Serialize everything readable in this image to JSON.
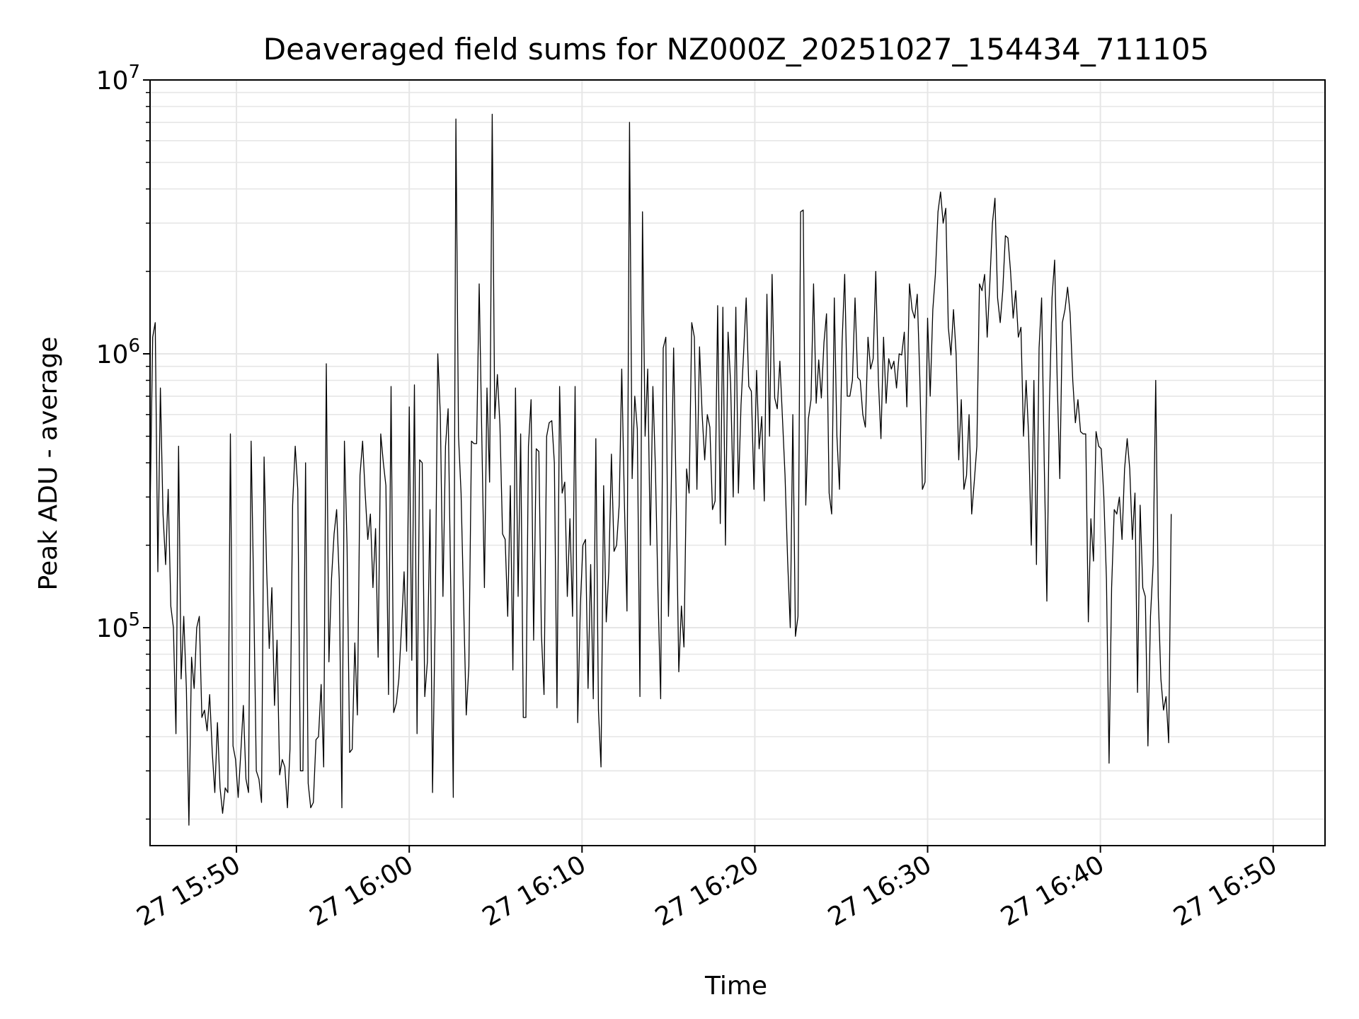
{
  "chart_data": {
    "type": "line",
    "title": "Deaveraged field sums for NZ000Z_20251027_154434_711105",
    "xlabel": "Time",
    "ylabel": "Peak ADU - average",
    "yscale": "log",
    "ylim": [
      16000,
      10000000
    ],
    "xlim_minutes": [
      -5,
      63
    ],
    "x_unit": "minutes after 27 15:50",
    "grid": true,
    "line_color": "#000000",
    "grid_color": "#e6e6e6",
    "x_ticks": [
      {
        "value": 0,
        "label": "27 15:50"
      },
      {
        "value": 10,
        "label": "27 16:00"
      },
      {
        "value": 20,
        "label": "27 16:10"
      },
      {
        "value": 30,
        "label": "27 16:20"
      },
      {
        "value": 40,
        "label": "27 16:30"
      },
      {
        "value": 50,
        "label": "27 16:40"
      },
      {
        "value": 60,
        "label": "27 16:50"
      }
    ],
    "y_ticks": [
      {
        "value": 100000,
        "base": "10",
        "exp": "5"
      },
      {
        "value": 1000000,
        "base": "10",
        "exp": "6"
      },
      {
        "value": 10000000,
        "base": "10",
        "exp": "7"
      }
    ],
    "series": [
      {
        "name": "Peak ADU - average",
        "sample_interval_s": 9,
        "t0_minutes": -5.0,
        "values": [
          260000,
          1150000,
          1300000,
          160000,
          750000,
          260000,
          170000,
          320000,
          120000,
          100000,
          41000,
          460000,
          65000,
          110000,
          60000,
          19000,
          78000,
          60000,
          100000,
          110000,
          47000,
          50000,
          42000,
          57000,
          35000,
          25000,
          45000,
          26000,
          21000,
          26000,
          25000,
          510000,
          37000,
          33000,
          24000,
          35000,
          52000,
          28000,
          25000,
          480000,
          130000,
          30000,
          28000,
          23000,
          420000,
          160000,
          84000,
          140000,
          52000,
          90000,
          29000,
          33000,
          31000,
          22000,
          36000,
          280000,
          460000,
          320000,
          30000,
          30000,
          400000,
          27000,
          22000,
          23000,
          39000,
          40000,
          62000,
          31000,
          920000,
          75000,
          150000,
          220000,
          270000,
          150000,
          22000,
          480000,
          200000,
          35000,
          36000,
          88000,
          48000,
          360000,
          480000,
          310000,
          210000,
          260000,
          140000,
          230000,
          78000,
          510000,
          400000,
          330000,
          57000,
          760000,
          49000,
          53000,
          65000,
          100000,
          160000,
          82000,
          640000,
          76000,
          770000,
          41000,
          410000,
          400000,
          56000,
          75000,
          270000,
          25000,
          110000,
          1000000,
          600000,
          130000,
          460000,
          630000,
          140000,
          24000,
          7200000,
          500000,
          310000,
          120000,
          48000,
          72000,
          480000,
          470000,
          470000,
          1800000,
          500000,
          140000,
          750000,
          340000,
          7500000,
          580000,
          840000,
          550000,
          220000,
          210000,
          110000,
          330000,
          70000,
          750000,
          130000,
          510000,
          47000,
          47000,
          460000,
          680000,
          90000,
          450000,
          440000,
          95000,
          57000,
          500000,
          560000,
          570000,
          400000,
          51000,
          760000,
          310000,
          340000,
          130000,
          250000,
          110000,
          760000,
          45000,
          120000,
          200000,
          210000,
          60000,
          170000,
          55000,
          490000,
          50000,
          31000,
          330000,
          105000,
          160000,
          430000,
          190000,
          200000,
          280000,
          880000,
          290000,
          115000,
          7000000,
          350000,
          700000,
          530000,
          56000,
          3300000,
          500000,
          880000,
          200000,
          760000,
          380000,
          130000,
          55000,
          1050000,
          1150000,
          110000,
          290000,
          1050000,
          300000,
          69000,
          120000,
          85000,
          380000,
          310000,
          1300000,
          1150000,
          320000,
          1060000,
          600000,
          410000,
          600000,
          540000,
          270000,
          290000,
          1500000,
          240000,
          1480000,
          200000,
          1200000,
          780000,
          300000,
          1480000,
          310000,
          650000,
          1000000,
          1600000,
          760000,
          730000,
          320000,
          870000,
          450000,
          590000,
          290000,
          1650000,
          500000,
          1950000,
          690000,
          630000,
          940000,
          580000,
          360000,
          175000,
          100000,
          600000,
          93000,
          110000,
          3300000,
          3350000,
          280000,
          580000,
          680000,
          1800000,
          660000,
          950000,
          690000,
          1100000,
          1400000,
          310000,
          260000,
          1600000,
          500000,
          320000,
          1100000,
          1950000,
          700000,
          700000,
          800000,
          1600000,
          820000,
          800000,
          600000,
          540000,
          1150000,
          880000,
          960000,
          2000000,
          800000,
          490000,
          1150000,
          660000,
          960000,
          880000,
          940000,
          750000,
          1000000,
          990000,
          1200000,
          640000,
          1800000,
          1450000,
          1350000,
          1650000,
          820000,
          320000,
          340000,
          1350000,
          700000,
          1450000,
          1950000,
          3300000,
          3900000,
          3000000,
          3400000,
          1250000,
          990000,
          1450000,
          1000000,
          410000,
          680000,
          320000,
          360000,
          600000,
          260000,
          340000,
          460000,
          1800000,
          1700000,
          1950000,
          1150000,
          1800000,
          3000000,
          3700000,
          1600000,
          1300000,
          1700000,
          2700000,
          2650000,
          2000000,
          1350000,
          1700000,
          1150000,
          1250000,
          500000,
          800000,
          500000,
          200000,
          800000,
          170000,
          1050000,
          1600000,
          400000,
          125000,
          650000,
          1600000,
          2200000,
          800000,
          350000,
          1300000,
          1450000,
          1750000,
          1400000,
          800000,
          560000,
          680000,
          520000,
          510000,
          510000,
          105000,
          250000,
          175000,
          520000,
          460000,
          450000,
          300000,
          150000,
          32000,
          140000,
          270000,
          260000,
          300000,
          210000,
          380000,
          490000,
          380000,
          210000,
          310000,
          58000,
          280000,
          140000,
          130000,
          37000,
          110000,
          170000,
          800000,
          130000,
          65000,
          50000,
          56000,
          38000,
          260000
        ]
      }
    ]
  }
}
